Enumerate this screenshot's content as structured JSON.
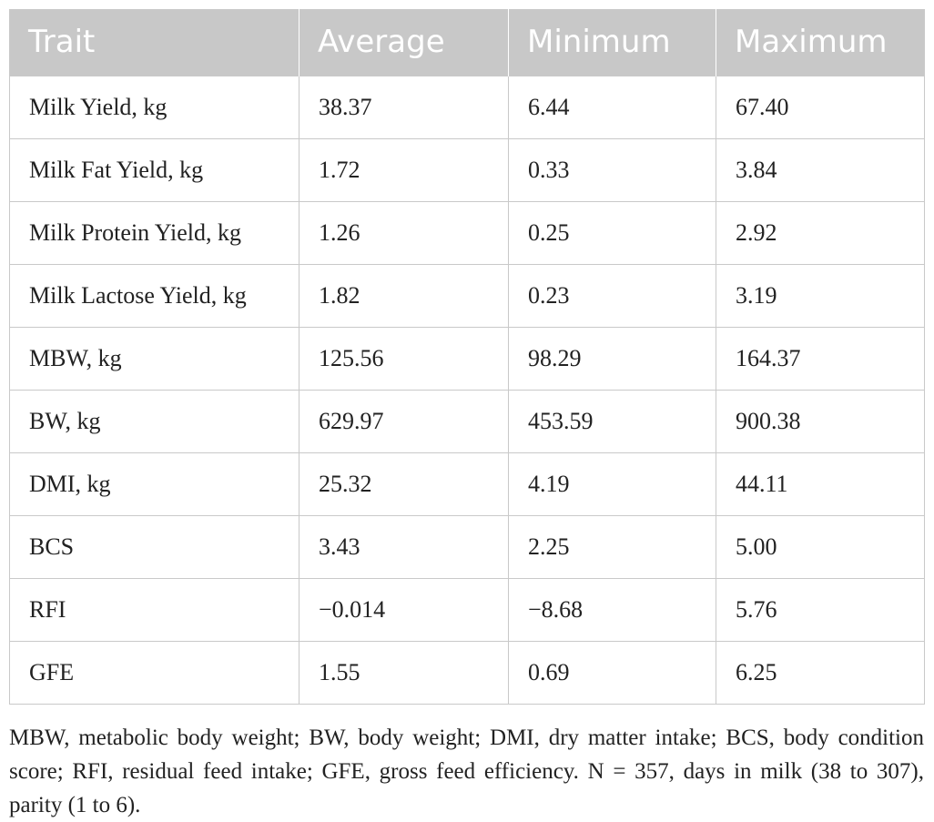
{
  "table": {
    "headers": [
      "Trait",
      "Average",
      "Minimum",
      "Maximum"
    ],
    "rows": [
      [
        "Milk Yield, kg",
        "38.37",
        "6.44",
        "67.40"
      ],
      [
        "Milk Fat Yield, kg",
        "1.72",
        "0.33",
        "3.84"
      ],
      [
        "Milk Protein Yield, kg",
        "1.26",
        "0.25",
        "2.92"
      ],
      [
        "Milk Lactose Yield, kg",
        "1.82",
        "0.23",
        "3.19"
      ],
      [
        "MBW, kg",
        "125.56",
        "98.29",
        "164.37"
      ],
      [
        "BW, kg",
        "629.97",
        "453.59",
        "900.38"
      ],
      [
        "DMI, kg",
        "25.32",
        "4.19",
        "44.11"
      ],
      [
        "BCS",
        "3.43",
        "2.25",
        "5.00"
      ],
      [
        "RFI",
        "−0.014",
        "−8.68",
        "5.76"
      ],
      [
        "GFE",
        "1.55",
        "0.69",
        "6.25"
      ]
    ]
  },
  "footnote": "MBW, metabolic body weight; BW, body weight; DMI, dry matter intake; BCS, body condition score; RFI, residual feed intake; GFE, gross feed efficiency. N = 357, days in milk (38 to 307), parity (1 to 6)."
}
